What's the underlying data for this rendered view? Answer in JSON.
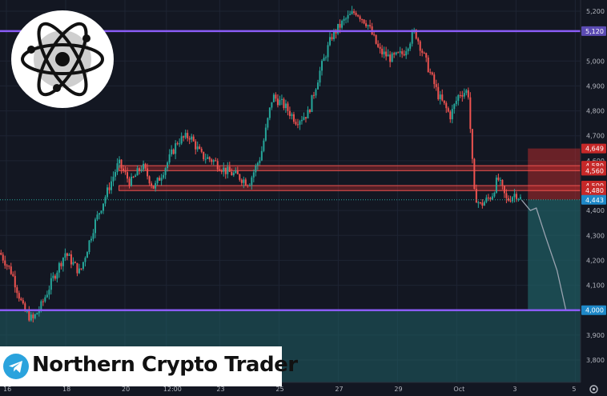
{
  "brand": {
    "name": "Northern Crypto Trader",
    "logo_icon": "atom-icon",
    "social_icon": "telegram-icon"
  },
  "colors": {
    "background": "#131722",
    "bull": "#26a69a",
    "bear": "#ef5350",
    "level_line": "#8a5cf6",
    "resistance_zone": "#d32f2f",
    "target_zone": "#1f5f64"
  },
  "settings_icon": "gear-icon",
  "chart_data": {
    "type": "candlestick",
    "y_axis": {
      "range": [
        3700,
        5240
      ],
      "tick_labels": [
        "5,200",
        "5,000",
        "4,900",
        "4,800",
        "4,700",
        "4,600",
        "4,400",
        "4,300",
        "4,200",
        "4,100",
        "3,900",
        "3,800"
      ],
      "tick_values": [
        5200,
        5000,
        4900,
        4800,
        4700,
        4600,
        4400,
        4300,
        4200,
        4100,
        3900,
        3800
      ]
    },
    "x_axis": {
      "tick_labels": [
        "16",
        "18",
        "20",
        "12:00",
        "23",
        "25",
        "27",
        "29",
        "Oct",
        "3",
        "5"
      ],
      "tick_positions": [
        0.0,
        0.1,
        0.2,
        0.27,
        0.36,
        0.46,
        0.56,
        0.66,
        0.76,
        0.86,
        0.96
      ]
    },
    "levels": [
      {
        "price": 5120,
        "label": "5,120",
        "kind": "horizontal-line"
      },
      {
        "price": 4000,
        "label": "4,000",
        "kind": "horizontal-line"
      }
    ],
    "zones": [
      {
        "top": 4580,
        "bottom": 4560,
        "top_label": "4,580",
        "bottom_label": "4,560"
      },
      {
        "top": 4500,
        "bottom": 4480,
        "top_label": "4,500",
        "bottom_label": "4,480"
      }
    ],
    "price_labels": [
      {
        "price": 4649,
        "label": "4,649",
        "kind": "stop"
      },
      {
        "price": 4443,
        "label": "4,443",
        "kind": "current"
      }
    ],
    "trade_box": {
      "entry": 4443,
      "stop": 4649,
      "target": 4000,
      "x_start": 0.88,
      "x_end": 0.97
    },
    "price_path": [
      [
        0.0,
        4230
      ],
      [
        0.02,
        4150
      ],
      [
        0.04,
        4000
      ],
      [
        0.055,
        3960
      ],
      [
        0.07,
        4020
      ],
      [
        0.09,
        4130
      ],
      [
        0.11,
        4230
      ],
      [
        0.135,
        4150
      ],
      [
        0.16,
        4350
      ],
      [
        0.18,
        4470
      ],
      [
        0.2,
        4590
      ],
      [
        0.22,
        4510
      ],
      [
        0.24,
        4580
      ],
      [
        0.26,
        4490
      ],
      [
        0.28,
        4580
      ],
      [
        0.3,
        4680
      ],
      [
        0.32,
        4700
      ],
      [
        0.34,
        4620
      ],
      [
        0.36,
        4600
      ],
      [
        0.38,
        4560
      ],
      [
        0.4,
        4540
      ],
      [
        0.42,
        4510
      ],
      [
        0.44,
        4620
      ],
      [
        0.46,
        4860
      ],
      [
        0.48,
        4820
      ],
      [
        0.5,
        4760
      ],
      [
        0.52,
        4790
      ],
      [
        0.54,
        4960
      ],
      [
        0.56,
        5100
      ],
      [
        0.58,
        5160
      ],
      [
        0.6,
        5200
      ],
      [
        0.62,
        5150
      ],
      [
        0.64,
        5040
      ],
      [
        0.66,
        5010
      ],
      [
        0.68,
        5030
      ],
      [
        0.7,
        5120
      ],
      [
        0.72,
        4990
      ],
      [
        0.74,
        4860
      ],
      [
        0.76,
        4780
      ],
      [
        0.775,
        4870
      ],
      [
        0.79,
        4880
      ],
      [
        0.8,
        4470
      ],
      [
        0.81,
        4420
      ],
      [
        0.83,
        4460
      ],
      [
        0.84,
        4530
      ],
      [
        0.855,
        4440
      ],
      [
        0.87,
        4470
      ],
      [
        0.88,
        4443
      ]
    ],
    "projection_path": [
      [
        0.88,
        4443
      ],
      [
        0.895,
        4400
      ],
      [
        0.905,
        4410
      ],
      [
        0.92,
        4300
      ],
      [
        0.94,
        4160
      ],
      [
        0.955,
        4000
      ]
    ]
  }
}
